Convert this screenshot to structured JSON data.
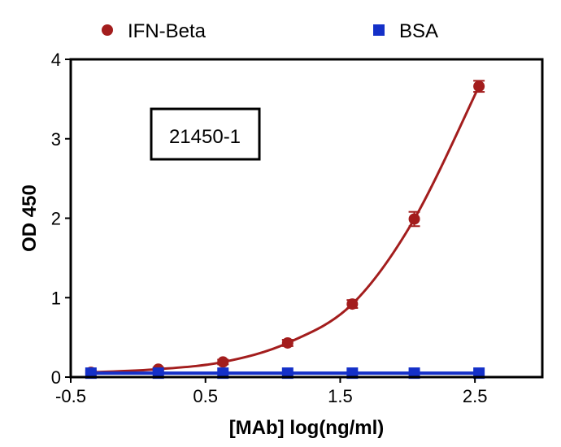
{
  "chart_data": {
    "type": "scatter",
    "title": "",
    "xlabel": "[MAb] log(ng/ml)",
    "ylabel": "OD 450",
    "xlim": [
      -0.5,
      3.0
    ],
    "ylim": [
      0,
      4
    ],
    "x_ticks": [
      -0.5,
      0.5,
      1.5,
      2.5
    ],
    "x_tick_labels": [
      "-0.5",
      "0.5",
      "1.5",
      "2.5"
    ],
    "y_ticks": [
      0,
      1,
      2,
      3,
      4
    ],
    "y_tick_labels": [
      "0",
      "1",
      "2",
      "3",
      "4"
    ],
    "grid": false,
    "legend_position": "top",
    "annotation": "21450-1",
    "series": [
      {
        "name": "IFN-Beta",
        "marker": "circle",
        "color": "#A31D1D",
        "fit_curve": true,
        "x": [
          -0.35,
          0.15,
          0.63,
          1.11,
          1.59,
          2.05,
          2.53
        ],
        "y": [
          0.06,
          0.1,
          0.19,
          0.43,
          0.92,
          1.99,
          3.66
        ],
        "error": [
          0.02,
          0.02,
          0.03,
          0.04,
          0.05,
          0.09,
          0.07
        ]
      },
      {
        "name": "BSA",
        "marker": "square",
        "color": "#1430C8",
        "fit_curve": false,
        "x": [
          -0.35,
          0.15,
          0.63,
          1.11,
          1.59,
          2.05,
          2.53
        ],
        "y": [
          0.05,
          0.05,
          0.05,
          0.05,
          0.05,
          0.05,
          0.05
        ],
        "error": [
          0,
          0,
          0,
          0,
          0,
          0,
          0
        ]
      }
    ]
  }
}
